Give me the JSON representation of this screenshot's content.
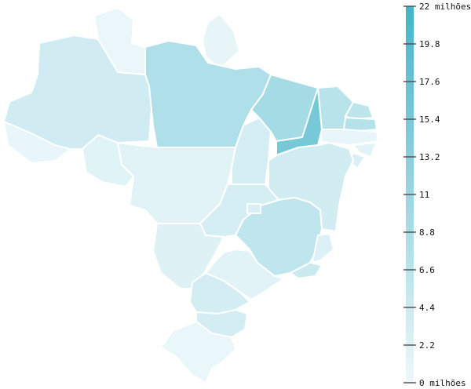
{
  "chart_data": {
    "type": "choropleth",
    "colors": {
      "scale_low": "#eef8fb",
      "scale_high": "#43b5c8"
    },
    "legend": {
      "placement": "right",
      "min": 0,
      "max": 22,
      "ticks": [
        "0 milhões",
        "2.2",
        "4.4",
        "6.6",
        "8.8",
        "11",
        "13.2",
        "15.4",
        "17.6",
        "19.8",
        "22 milhões"
      ]
    },
    "regions": [
      {
        "value": 3.9
      },
      {
        "value": 0.5
      },
      {
        "value": 0.9
      },
      {
        "value": 0.8
      },
      {
        "value": 8.1
      },
      {
        "value": 1.8
      },
      {
        "value": 1.6
      },
      {
        "value": 3.4
      },
      {
        "value": 9.4
      },
      {
        "value": 15.3
      },
      {
        "value": 7.0
      },
      {
        "value": 6.3
      },
      {
        "value": 7.3
      },
      {
        "value": 0.8
      },
      {
        "value": 1.6
      },
      {
        "value": 2.7
      },
      {
        "value": 3.7
      },
      {
        "value": 6.1
      },
      {
        "value": 3.3
      },
      {
        "value": 2.8
      },
      {
        "value": 2.3
      },
      {
        "value": 4.6
      },
      {
        "value": 2.1
      },
      {
        "value": 1.5
      },
      {
        "value": 3.5
      },
      {
        "value": 3.5
      },
      {
        "value": 0.6
      }
    ]
  }
}
